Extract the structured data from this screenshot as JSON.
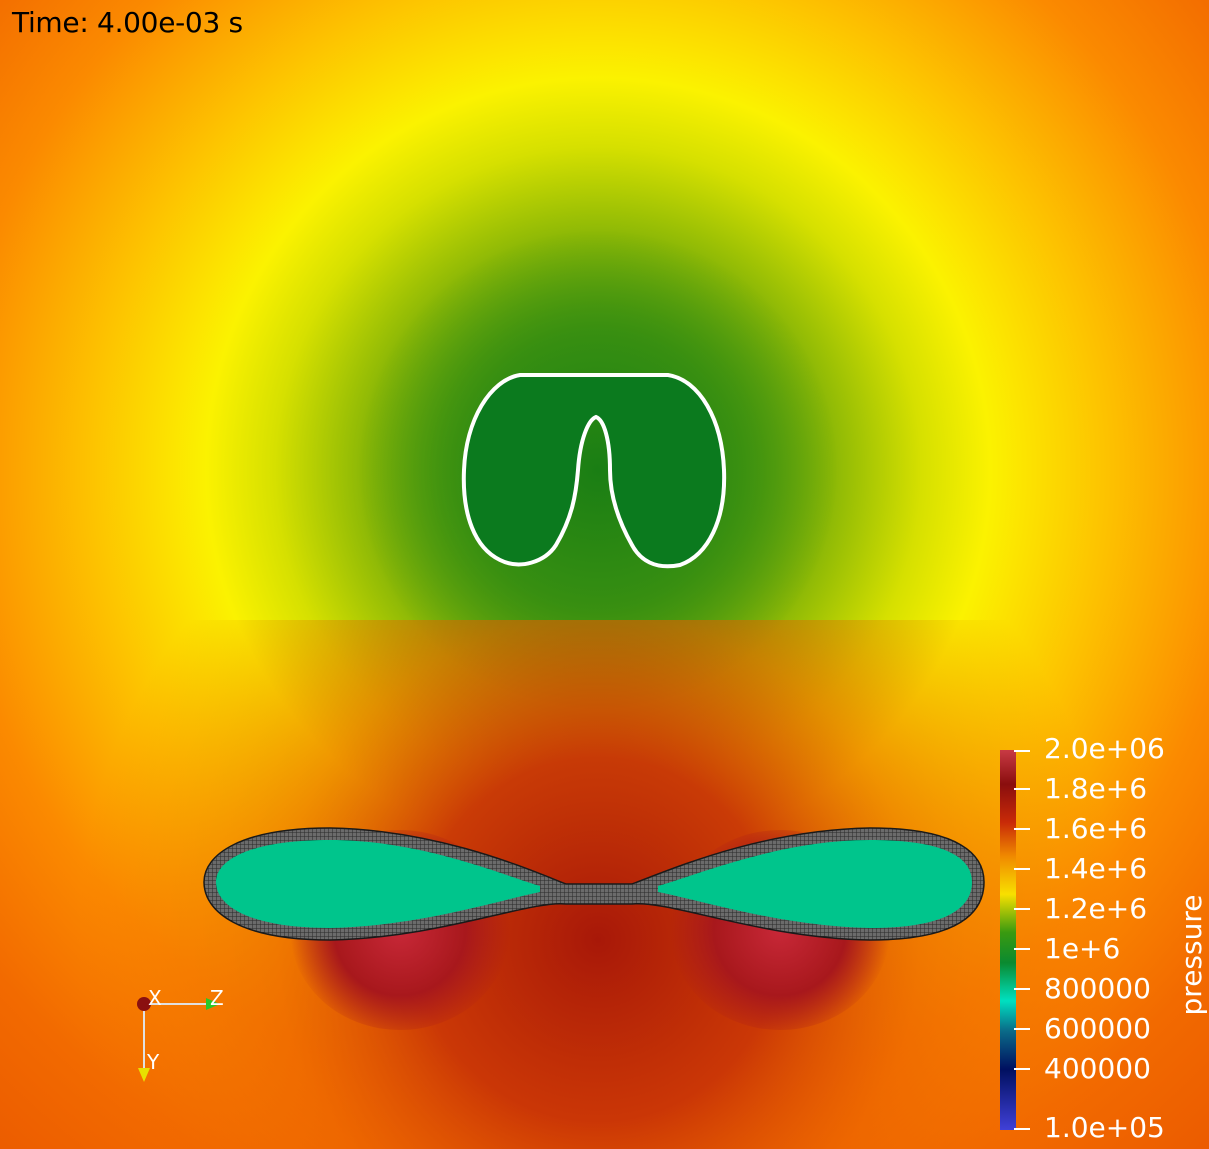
{
  "time_label": "Time: 4.00e-03 s",
  "colorbar": {
    "title": "pressure",
    "labels": [
      "2.0e+06",
      "1.8e+6",
      "1.6e+6",
      "1.4e+6",
      "1.2e+6",
      "1e+6",
      "800000",
      "600000",
      "400000",
      "1.0e+05"
    ],
    "range": [
      100000,
      2000000
    ]
  },
  "axes": {
    "x_label": "X",
    "y_label": "Y",
    "z_label": "Z"
  },
  "colors": {
    "upper_region": "#0b7a1e",
    "lower_region": "#00c58c",
    "contour": "#ffffff"
  }
}
